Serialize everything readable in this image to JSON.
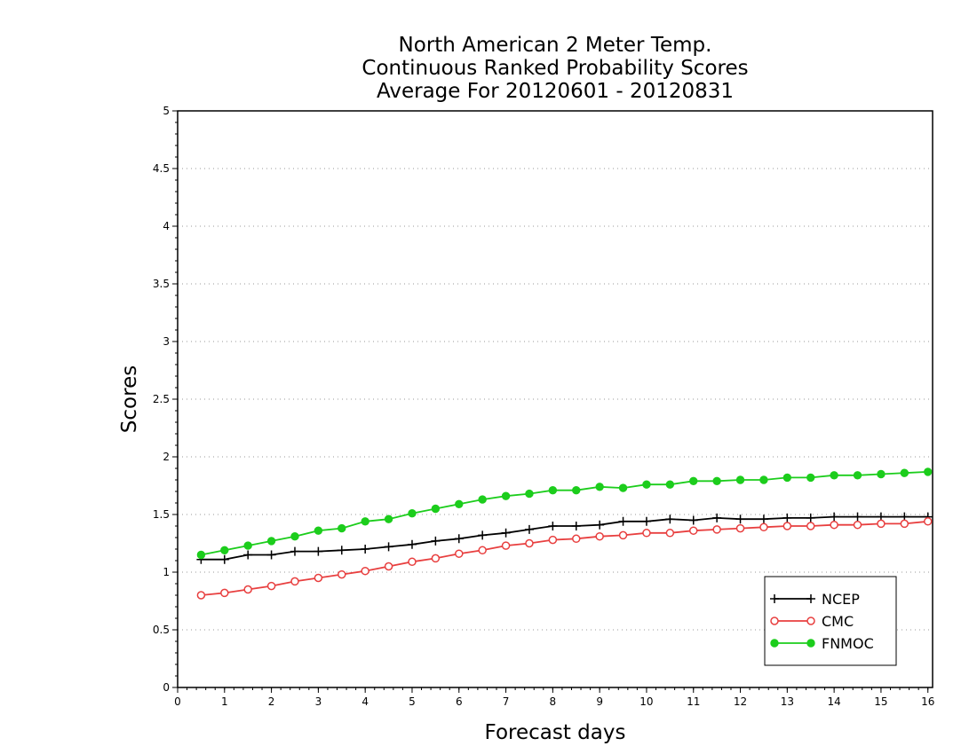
{
  "title_lines": [
    "North American 2 Meter Temp.",
    "Continuous Ranked Probability Scores",
    "Average For 20120601 - 20120831"
  ],
  "chart_data": {
    "type": "line",
    "xlabel": "Forecast days",
    "ylabel": "Scores",
    "xlim": [
      0,
      16.1
    ],
    "ylim": [
      0,
      5
    ],
    "xticks": [
      0,
      1,
      2,
      3,
      4,
      5,
      6,
      7,
      8,
      9,
      10,
      11,
      12,
      13,
      14,
      15,
      16
    ],
    "yticks": [
      0,
      0.5,
      1,
      1.5,
      2,
      2.5,
      3,
      3.5,
      4,
      4.5,
      5
    ],
    "ytick_labels": [
      "0",
      "0.5",
      "1",
      "1.5",
      "2",
      "2.5",
      "3",
      "3.5",
      "4",
      "4.5",
      "5"
    ],
    "grid": "horizontal dotted",
    "legend_position": "bottom-right",
    "x": [
      0.5,
      1,
      1.5,
      2,
      2.5,
      3,
      3.5,
      4,
      4.5,
      5,
      5.5,
      6,
      6.5,
      7,
      7.5,
      8,
      8.5,
      9,
      9.5,
      10,
      10.5,
      11,
      11.5,
      12,
      12.5,
      13,
      13.5,
      14,
      14.5,
      15,
      15.5,
      16
    ],
    "series": [
      {
        "name": "NCEP",
        "color": "#000000",
        "marker": "plus",
        "values": [
          1.11,
          1.11,
          1.15,
          1.15,
          1.18,
          1.18,
          1.19,
          1.2,
          1.22,
          1.24,
          1.27,
          1.29,
          1.32,
          1.34,
          1.37,
          1.4,
          1.4,
          1.41,
          1.44,
          1.44,
          1.46,
          1.45,
          1.47,
          1.46,
          1.46,
          1.47,
          1.47,
          1.48,
          1.48,
          1.48,
          1.48,
          1.48
        ]
      },
      {
        "name": "CMC",
        "color": "#e83f3f",
        "marker": "open-circle",
        "values": [
          0.8,
          0.82,
          0.85,
          0.88,
          0.92,
          0.95,
          0.98,
          1.01,
          1.05,
          1.09,
          1.12,
          1.16,
          1.19,
          1.23,
          1.25,
          1.28,
          1.29,
          1.31,
          1.32,
          1.34,
          1.34,
          1.36,
          1.37,
          1.38,
          1.39,
          1.4,
          1.4,
          1.41,
          1.41,
          1.42,
          1.42,
          1.44
        ]
      },
      {
        "name": "FNMOC",
        "color": "#1ccd1c",
        "marker": "filled-circle",
        "values": [
          1.15,
          1.19,
          1.23,
          1.27,
          1.31,
          1.36,
          1.38,
          1.44,
          1.46,
          1.51,
          1.55,
          1.59,
          1.63,
          1.66,
          1.68,
          1.71,
          1.71,
          1.74,
          1.73,
          1.76,
          1.76,
          1.79,
          1.79,
          1.8,
          1.8,
          1.82,
          1.82,
          1.84,
          1.84,
          1.85,
          1.86,
          1.87
        ]
      }
    ]
  }
}
